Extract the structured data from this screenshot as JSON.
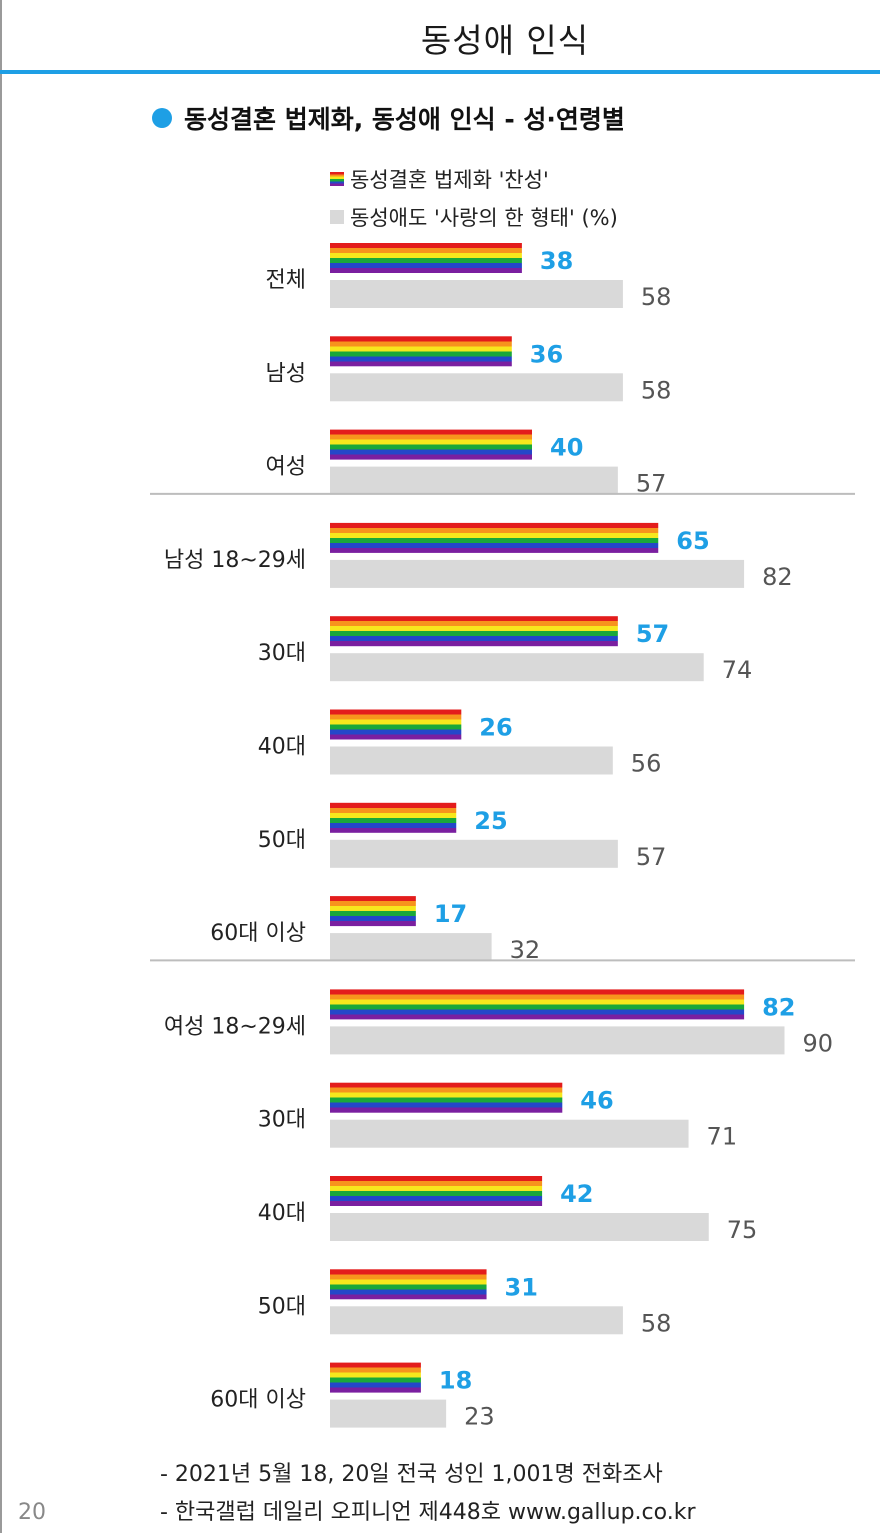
{
  "page": {
    "title": "동성애 인식",
    "section_title": "동성결혼 법제화, 동성애 인식 - 성·연령별",
    "page_number": "20",
    "footnotes": [
      "- 2021년 5월 18, 20일 전국 성인 1,001명 전화조사",
      "- 한국갤럽 데일리 오피니언 제448호 www.gallup.co.kr"
    ]
  },
  "colors": {
    "accent": "#1e9fe5",
    "gray_bar": "#d9d9d9",
    "value_blue": "#1e9fe5",
    "value_gray": "#555555",
    "rainbow": [
      "#e31c1c",
      "#f7941d",
      "#f7e81d",
      "#1aa83a",
      "#2447c9",
      "#7a1fa0"
    ]
  },
  "chart_data": {
    "type": "bar",
    "orientation": "horizontal",
    "unit": "(%)",
    "series": [
      {
        "name": "동성결혼 법제화 '찬성'",
        "values": [
          38,
          36,
          40,
          65,
          57,
          26,
          25,
          17,
          82,
          46,
          42,
          31,
          18
        ]
      },
      {
        "name": "동성애도 '사랑의 한 형태' (%)",
        "values": [
          58,
          58,
          57,
          82,
          74,
          56,
          57,
          32,
          90,
          71,
          75,
          58,
          23
        ]
      }
    ],
    "categories": [
      "전체",
      "남성",
      "여성",
      "남성 18~29세",
      "30대",
      "40대",
      "50대",
      "60대 이상",
      "여성 18~29세",
      "30대",
      "40대",
      "50대",
      "60대 이상"
    ],
    "groups": [
      [
        0,
        1,
        2
      ],
      [
        3,
        4,
        5,
        6,
        7
      ],
      [
        8,
        9,
        10,
        11,
        12
      ]
    ],
    "xlim": [
      0,
      100
    ],
    "legend": "top",
    "grid": false
  }
}
